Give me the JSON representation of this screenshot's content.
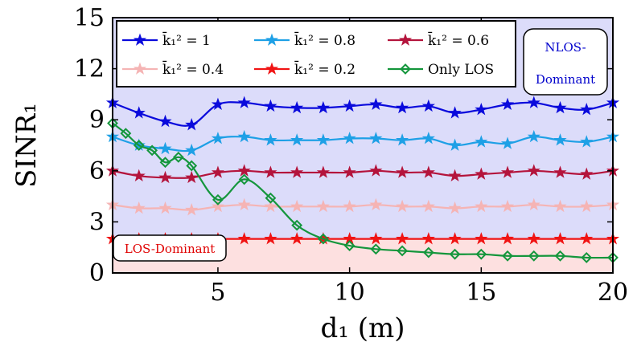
{
  "chart_data": {
    "type": "line",
    "xlabel": "d₁ (m)",
    "ylabel": "SINR₁",
    "xlim": [
      1,
      20
    ],
    "ylim": [
      0,
      15
    ],
    "xticks": [
      5,
      10,
      15,
      20
    ],
    "yticks": [
      0,
      3,
      6,
      9,
      12,
      15
    ],
    "grid": false,
    "legend_position": "top-left",
    "regions": {
      "nlos": {
        "label_line1": "NLOS-",
        "label_line2": "Dominant",
        "color": "#dcdcfa",
        "text_color": "#0000cc"
      },
      "los": {
        "label": "LOS-Dominant",
        "color": "#fde0e0",
        "text_color": "#e00000"
      }
    },
    "x": [
      1,
      2,
      3,
      4,
      5,
      6,
      7,
      8,
      9,
      10,
      11,
      12,
      13,
      14,
      15,
      16,
      17,
      18,
      19,
      20
    ],
    "series": [
      {
        "name": "k̄₁² = 1",
        "color": "#0a0adc",
        "marker": "star",
        "values": [
          10.0,
          9.4,
          8.9,
          8.7,
          9.9,
          10.0,
          9.8,
          9.7,
          9.7,
          9.8,
          9.9,
          9.7,
          9.8,
          9.4,
          9.6,
          9.9,
          10.0,
          9.7,
          9.6,
          10.0
        ]
      },
      {
        "name": "k̄₁² = 0.8",
        "color": "#1ea0e6",
        "marker": "star",
        "values": [
          8.0,
          7.5,
          7.3,
          7.2,
          7.9,
          8.0,
          7.8,
          7.8,
          7.8,
          7.9,
          7.9,
          7.8,
          7.9,
          7.5,
          7.7,
          7.6,
          8.0,
          7.8,
          7.7,
          8.0
        ]
      },
      {
        "name": "k̄₁² = 0.6",
        "color": "#b4143c",
        "marker": "star",
        "values": [
          6.0,
          5.7,
          5.6,
          5.6,
          5.9,
          6.0,
          5.9,
          5.9,
          5.9,
          5.9,
          6.0,
          5.9,
          5.9,
          5.7,
          5.8,
          5.9,
          6.0,
          5.9,
          5.8,
          6.0
        ]
      },
      {
        "name": "k̄₁² = 0.4",
        "color": "#f5b4b4",
        "marker": "star",
        "values": [
          4.0,
          3.8,
          3.8,
          3.7,
          3.9,
          4.0,
          3.9,
          3.9,
          3.9,
          3.9,
          4.0,
          3.9,
          3.9,
          3.8,
          3.9,
          3.9,
          4.0,
          3.9,
          3.9,
          4.0
        ]
      },
      {
        "name": "k̄₁² = 0.2",
        "color": "#f01414",
        "marker": "star",
        "values": [
          2.0,
          2.0,
          2.0,
          2.0,
          2.0,
          2.0,
          2.0,
          2.0,
          2.0,
          2.0,
          2.0,
          2.0,
          2.0,
          2.0,
          2.0,
          2.0,
          2.0,
          2.0,
          2.0,
          2.0
        ]
      },
      {
        "name": "Only LOS",
        "color": "#14963c",
        "marker": "diamond",
        "x": [
          1,
          1.5,
          2,
          2.5,
          3,
          3.5,
          4,
          5,
          6,
          7,
          8,
          9,
          10,
          11,
          12,
          13,
          14,
          15,
          16,
          17,
          18,
          19,
          20
        ],
        "values": [
          8.8,
          8.2,
          7.5,
          7.2,
          6.5,
          6.8,
          6.3,
          4.3,
          5.5,
          4.4,
          2.8,
          2.0,
          1.6,
          1.4,
          1.3,
          1.2,
          1.1,
          1.1,
          1.0,
          1.0,
          1.0,
          0.9,
          0.9
        ]
      }
    ]
  }
}
